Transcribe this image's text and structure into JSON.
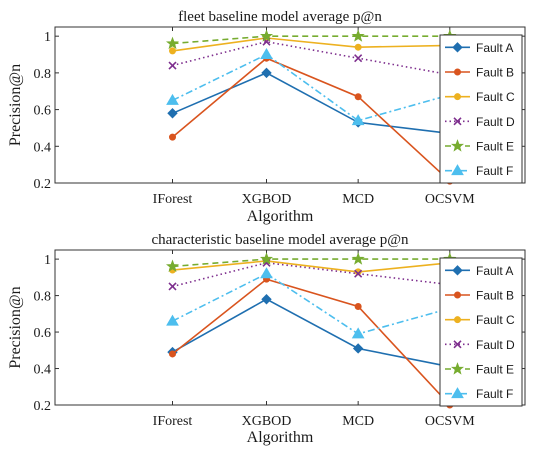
{
  "chart_data": [
    {
      "type": "line",
      "title": "fleet baseline model average p@n",
      "xlabel": "Algorithm",
      "ylabel": "Precision@n",
      "categories": [
        "IForest",
        "XGBOD",
        "MCD",
        "OCSVM"
      ],
      "ylim": [
        0.2,
        1.05
      ],
      "yticks": [
        0.2,
        0.4,
        0.6,
        0.8,
        1
      ],
      "legend_position": "right",
      "grid": false,
      "series": [
        {
          "name": "Fault A",
          "color": "#1f6fb0",
          "marker": "diamond",
          "dash": "solid",
          "values": [
            0.58,
            0.8,
            0.53,
            0.47
          ]
        },
        {
          "name": "Fault B",
          "color": "#d9541e",
          "marker": "circle",
          "dash": "solid",
          "values": [
            0.45,
            0.88,
            0.67,
            0.21
          ]
        },
        {
          "name": "Fault C",
          "color": "#edb120",
          "marker": "circle",
          "dash": "solid",
          "values": [
            0.92,
            0.99,
            0.94,
            0.95
          ]
        },
        {
          "name": "Fault D",
          "color": "#7e2f8e",
          "marker": "x",
          "dash": "dotted",
          "values": [
            0.84,
            0.97,
            0.88,
            0.79
          ]
        },
        {
          "name": "Fault E",
          "color": "#77ac30",
          "marker": "star",
          "dash": "dashed",
          "values": [
            0.96,
            1.0,
            1.0,
            1.0
          ]
        },
        {
          "name": "Fault F",
          "color": "#4dbeee",
          "marker": "triangle",
          "dash": "dashdot",
          "values": [
            0.65,
            0.9,
            0.54,
            0.68
          ]
        }
      ]
    },
    {
      "type": "line",
      "title": "characteristic baseline model average p@n",
      "xlabel": "Algorithm",
      "ylabel": "Precision@n",
      "categories": [
        "IForest",
        "XGBOD",
        "MCD",
        "OCSVM"
      ],
      "ylim": [
        0.2,
        1.05
      ],
      "yticks": [
        0.2,
        0.4,
        0.6,
        0.8,
        1
      ],
      "legend_position": "right",
      "grid": false,
      "series": [
        {
          "name": "Fault A",
          "color": "#1f6fb0",
          "marker": "diamond",
          "dash": "solid",
          "values": [
            0.49,
            0.78,
            0.51,
            0.41
          ]
        },
        {
          "name": "Fault B",
          "color": "#d9541e",
          "marker": "circle",
          "dash": "solid",
          "values": [
            0.48,
            0.89,
            0.74,
            0.2
          ]
        },
        {
          "name": "Fault C",
          "color": "#edb120",
          "marker": "circle",
          "dash": "solid",
          "values": [
            0.94,
            0.99,
            0.93,
            0.98
          ]
        },
        {
          "name": "Fault D",
          "color": "#7e2f8e",
          "marker": "x",
          "dash": "dotted",
          "values": [
            0.85,
            0.98,
            0.92,
            0.86
          ]
        },
        {
          "name": "Fault E",
          "color": "#77ac30",
          "marker": "star",
          "dash": "dashed",
          "values": [
            0.96,
            1.0,
            1.0,
            1.0
          ]
        },
        {
          "name": "Fault F",
          "color": "#4dbeee",
          "marker": "triangle",
          "dash": "dashdot",
          "values": [
            0.66,
            0.92,
            0.59,
            0.73
          ]
        }
      ]
    }
  ]
}
